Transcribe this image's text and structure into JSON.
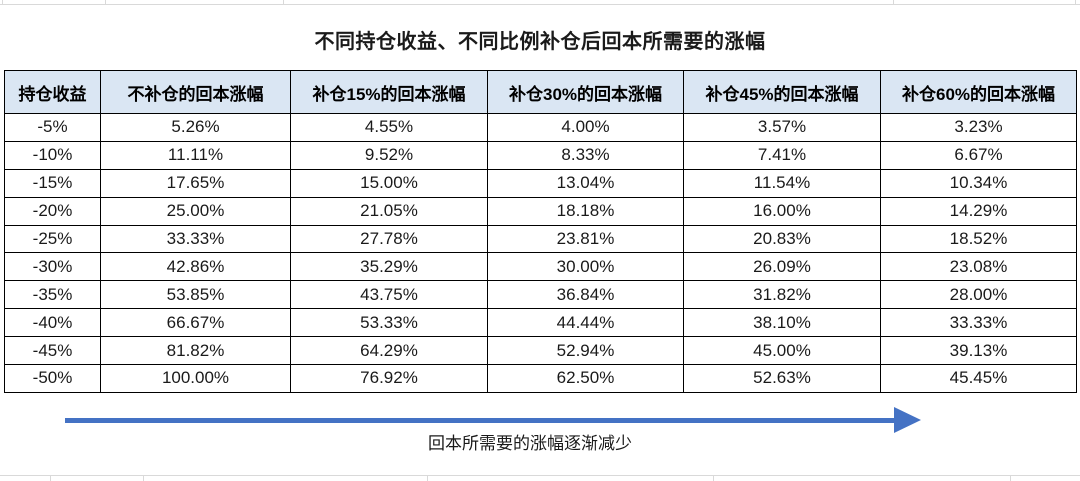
{
  "title": "不同持仓收益、不同比例补仓后回本所需要的涨幅",
  "chart_data": {
    "type": "table",
    "columns": [
      "持仓收益",
      "不补仓的回本涨幅",
      "补仓15%的回本涨幅",
      "补仓30%的回本涨幅",
      "补仓45%的回本涨幅",
      "补仓60%的回本涨幅"
    ],
    "rows": [
      [
        "-5%",
        "5.26%",
        "4.55%",
        "4.00%",
        "3.57%",
        "3.23%"
      ],
      [
        "-10%",
        "11.11%",
        "9.52%",
        "8.33%",
        "7.41%",
        "6.67%"
      ],
      [
        "-15%",
        "17.65%",
        "15.00%",
        "13.04%",
        "11.54%",
        "10.34%"
      ],
      [
        "-20%",
        "25.00%",
        "21.05%",
        "18.18%",
        "16.00%",
        "14.29%"
      ],
      [
        "-25%",
        "33.33%",
        "27.78%",
        "23.81%",
        "20.83%",
        "18.52%"
      ],
      [
        "-30%",
        "42.86%",
        "35.29%",
        "30.00%",
        "26.09%",
        "23.08%"
      ],
      [
        "-35%",
        "53.85%",
        "43.75%",
        "36.84%",
        "31.82%",
        "28.00%"
      ],
      [
        "-40%",
        "66.67%",
        "53.33%",
        "44.44%",
        "38.10%",
        "33.33%"
      ],
      [
        "-45%",
        "81.82%",
        "64.29%",
        "52.94%",
        "45.00%",
        "39.13%"
      ],
      [
        "-50%",
        "100.00%",
        "76.92%",
        "62.50%",
        "52.63%",
        "45.45%"
      ]
    ]
  },
  "annotation": {
    "arrow_label": "回本所需要的涨幅逐渐减少"
  },
  "colors": {
    "header_bg": "#dae6f3",
    "arrow": "#4472c4",
    "border": "#000000",
    "gridline": "#d9d9d9"
  }
}
